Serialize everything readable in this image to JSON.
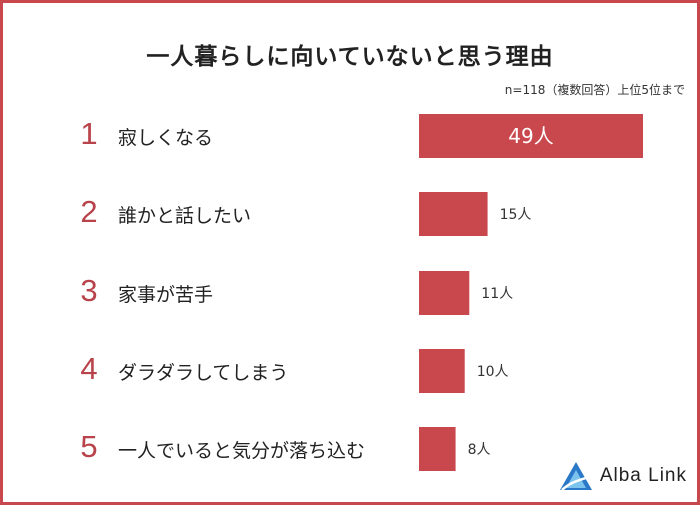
{
  "title": "一人暮らしに向いていないと思う理由",
  "note": "n=118（複数回答）上位5位まで",
  "chart_data": {
    "type": "bar",
    "orientation": "horizontal",
    "title": "一人暮らしに向いていないと思う理由",
    "categories": [
      "寂しくなる",
      "誰かと話したい",
      "家事が苦手",
      "ダラダラしてしまう",
      "一人でいると気分が落ち込む"
    ],
    "ranks": [
      "1",
      "2",
      "3",
      "4",
      "5"
    ],
    "values": [
      49,
      15,
      11,
      10,
      8
    ],
    "value_labels": [
      "49人",
      "15人",
      "11人",
      "10人",
      "8人"
    ],
    "unit": "人",
    "bar_color": "#c9484d"
  },
  "brand": {
    "name": "Alba Link",
    "color": "#2a78c8"
  }
}
